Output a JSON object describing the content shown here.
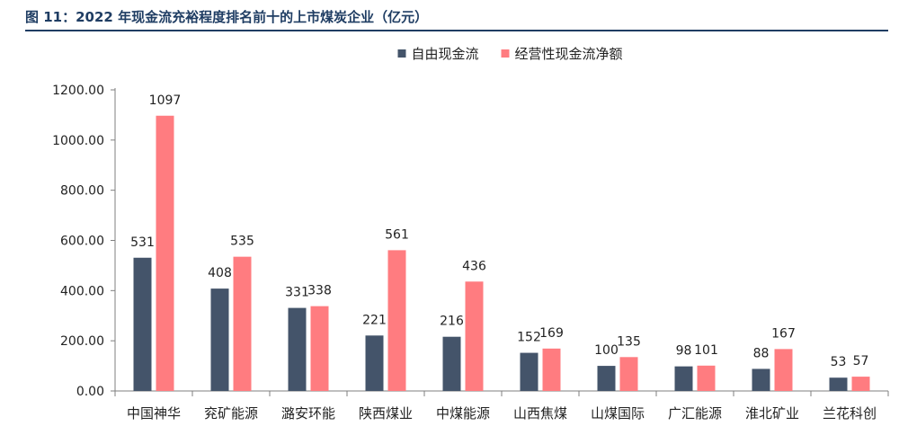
{
  "header": {
    "title": "图 11：2022 年现金流充裕程度排名前十的上市煤炭企业（亿元）"
  },
  "colors": {
    "title": "#1f3d63",
    "series_1": "#44546a",
    "series_2": "#ff7c80",
    "axis": "#7f7f7f"
  },
  "chart_data": {
    "type": "bar",
    "categories": [
      "中国神华",
      "兖矿能源",
      "潞安环能",
      "陕西煤业",
      "中煤能源",
      "山西焦煤",
      "山煤国际",
      "广汇能源",
      "淮北矿业",
      "兰花科创"
    ],
    "series": [
      {
        "name": "自由现金流",
        "values": [
          531,
          408,
          331,
          221,
          216,
          152,
          100,
          98,
          88,
          53
        ],
        "color": "#44546a"
      },
      {
        "name": "经营性现金流净额",
        "values": [
          1097,
          535,
          338,
          561,
          436,
          169,
          135,
          101,
          167,
          57
        ],
        "color": "#ff7c80"
      }
    ],
    "ylim": [
      0,
      1200
    ],
    "yticks": [
      "0.00",
      "200.00",
      "400.00",
      "600.00",
      "800.00",
      "1000.00",
      "1200.00"
    ],
    "legend_position": "top-center",
    "grid": false
  }
}
